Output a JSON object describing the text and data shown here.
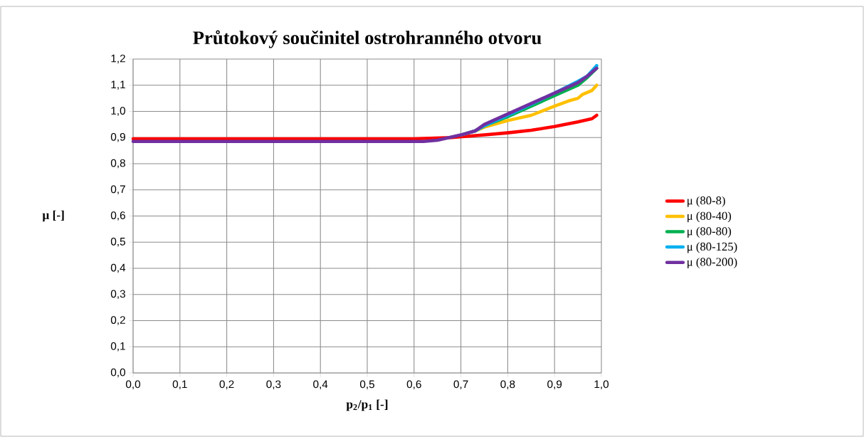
{
  "chart_data": {
    "type": "line",
    "title": "Průtokový součinitel ostrohranného otvoru",
    "xlabel": "p$_{2}$/p$_{1}$ [-]",
    "ylabel": "μ [-]",
    "xlim": [
      0,
      1
    ],
    "ylim": [
      0,
      1.2
    ],
    "xticks": [
      {
        "value": 0,
        "label": "0,0"
      },
      {
        "value": 0.1,
        "label": "0,1"
      },
      {
        "value": 0.2,
        "label": "0,2"
      },
      {
        "value": 0.3,
        "label": "0,3"
      },
      {
        "value": 0.4,
        "label": "0,4"
      },
      {
        "value": 0.5,
        "label": "0,5"
      },
      {
        "value": 0.6,
        "label": "0,6"
      },
      {
        "value": 0.7,
        "label": "0,7"
      },
      {
        "value": 0.8,
        "label": "0,8"
      },
      {
        "value": 0.9,
        "label": "0,9"
      },
      {
        "value": 1,
        "label": "1,0"
      }
    ],
    "yticks": [
      {
        "value": 0,
        "label": "0,0"
      },
      {
        "value": 0.1,
        "label": "0,1"
      },
      {
        "value": 0.2,
        "label": "0,2"
      },
      {
        "value": 0.3,
        "label": "0,3"
      },
      {
        "value": 0.4,
        "label": "0,4"
      },
      {
        "value": 0.5,
        "label": "0,5"
      },
      {
        "value": 0.6,
        "label": "0,6"
      },
      {
        "value": 0.7,
        "label": "0,7"
      },
      {
        "value": 0.8,
        "label": "0,8"
      },
      {
        "value": 0.9,
        "label": "0,9"
      },
      {
        "value": 1,
        "label": "1,0"
      },
      {
        "value": 1.1,
        "label": "1,1"
      },
      {
        "value": 1.2,
        "label": "1,2"
      }
    ],
    "grid": true,
    "legend": "right",
    "marker": "none",
    "line_style": "solid",
    "series": [
      {
        "name": "μ (80-8)",
        "color": "#ff0000",
        "x": [
          0,
          0.3,
          0.6,
          0.68,
          0.75,
          0.8,
          0.85,
          0.9,
          0.95,
          0.98,
          0.99
        ],
        "values": [
          0.895,
          0.895,
          0.895,
          0.9,
          0.91,
          0.918,
          0.928,
          0.942,
          0.96,
          0.972,
          0.985
        ]
      },
      {
        "name": "μ (80-40)",
        "color": "#ffc000",
        "x": [
          0.7,
          0.73,
          0.75,
          0.8,
          0.85,
          0.9,
          0.93,
          0.95,
          0.96,
          0.98,
          0.99
        ],
        "values": [
          0.91,
          0.925,
          0.94,
          0.965,
          0.985,
          1.02,
          1.04,
          1.05,
          1.065,
          1.08,
          1.1
        ]
      },
      {
        "name": "μ (80-80)",
        "color": "#00b050",
        "x": [
          0.73,
          0.75,
          0.8,
          0.85,
          0.9,
          0.95,
          0.97,
          0.99
        ],
        "values": [
          0.925,
          0.945,
          0.98,
          1.02,
          1.06,
          1.1,
          1.13,
          1.165
        ]
      },
      {
        "name": "μ (80-125)",
        "color": "#00b0f0",
        "x": [
          0.7,
          0.73,
          0.75,
          0.8,
          0.9,
          0.95,
          0.97,
          0.99
        ],
        "values": [
          0.91,
          0.925,
          0.945,
          0.985,
          1.07,
          1.115,
          1.135,
          1.175
        ]
      },
      {
        "name": "μ (80-200)",
        "color": "#7030a0",
        "x": [
          0,
          0.3,
          0.62,
          0.65,
          0.7,
          0.73,
          0.75,
          0.8,
          0.9,
          0.95,
          0.97,
          0.99
        ],
        "values": [
          0.885,
          0.885,
          0.885,
          0.89,
          0.91,
          0.925,
          0.95,
          0.99,
          1.07,
          1.11,
          1.135,
          1.165
        ]
      }
    ]
  }
}
